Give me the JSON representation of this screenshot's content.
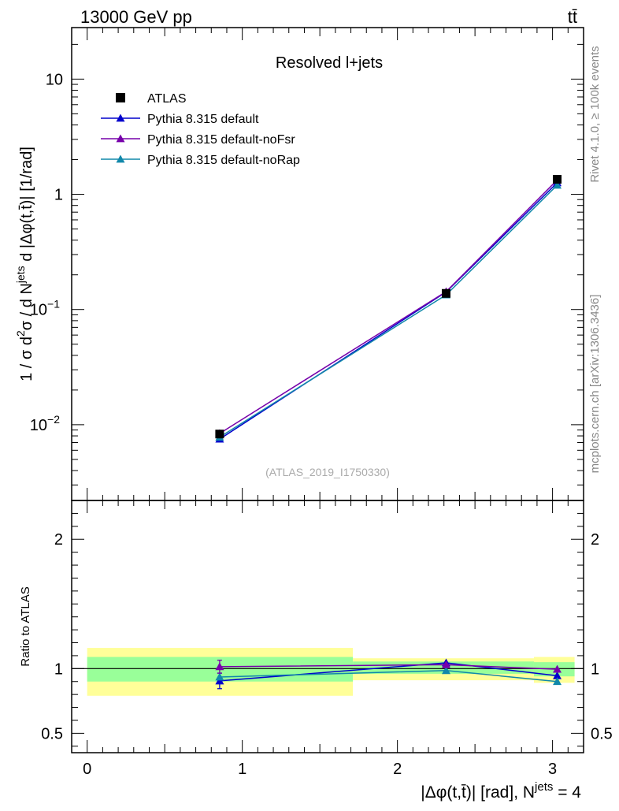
{
  "header": {
    "energy": "13000 GeV pp",
    "process": "tt̄"
  },
  "side_labels": {
    "rivet": "Rivet 4.1.0, ≥ 100k events",
    "mcplots": "mcplots.cern.ch [arXiv:1306.3436]"
  },
  "colors": {
    "atlas": "#000000",
    "default": "#0000cc",
    "noFsr": "#7700aa",
    "noRap": "#1188aa",
    "band_inner": "#99ff99",
    "band_outer": "#ffff99"
  },
  "chart_data": [
    {
      "type": "line",
      "panel": "main",
      "title": "Resolved l+jets",
      "watermark": "(ATLAS_2019_I1750330)",
      "ylabel": "1 / σ d²σ / d N^{jets} d |Δφ(t,t̄)| [1/rad]",
      "yscale": "log",
      "ylim": [
        0.0022,
        28
      ],
      "xlim": [
        -0.1,
        3.2
      ],
      "y_ticks": [
        {
          "value": 0.01,
          "base": "10",
          "exp": "−2"
        },
        {
          "value": 0.1,
          "base": "10",
          "exp": "−1"
        },
        {
          "value": 1,
          "base": "1",
          "exp": ""
        },
        {
          "value": 10,
          "base": "10",
          "exp": ""
        }
      ],
      "legend_position": "top-left",
      "series": [
        {
          "name": "ATLAS",
          "key": "atlas",
          "marker": "square",
          "x": [
            0.854,
            2.314,
            3.03
          ],
          "y": [
            0.0083,
            0.138,
            1.35
          ]
        },
        {
          "name": "Pythia 8.315 default",
          "key": "default",
          "marker": "triangle",
          "x": [
            0.854,
            2.314,
            3.03
          ],
          "y": [
            0.0075,
            0.142,
            1.26
          ]
        },
        {
          "name": "Pythia 8.315 default-noFsr",
          "key": "noFsr",
          "marker": "triangle",
          "x": [
            0.854,
            2.314,
            3.03
          ],
          "y": [
            0.0084,
            0.143,
            1.33
          ]
        },
        {
          "name": "Pythia 8.315 default-noRap",
          "key": "noRap",
          "marker": "triangle",
          "x": [
            0.854,
            2.314,
            3.03
          ],
          "y": [
            0.0078,
            0.134,
            1.2
          ]
        }
      ]
    },
    {
      "type": "line",
      "panel": "ratio",
      "ylabel": "Ratio to ATLAS",
      "xlabel": "|Δφ(t,t̄)| [rad], N^{jets} = 4",
      "ylim": [
        0.35,
        2.3
      ],
      "xlim": [
        -0.1,
        3.2
      ],
      "x_ticks": [
        0,
        1,
        2,
        3
      ],
      "y_ticks": [
        0.5,
        1,
        2
      ],
      "bands": [
        {
          "x0": 0,
          "x1": 1.713,
          "inner": [
            0.9,
            1.09
          ],
          "outer": [
            0.79,
            1.16
          ]
        },
        {
          "x0": 1.713,
          "x1": 2.88,
          "inner": [
            0.96,
            1.055
          ],
          "outer": [
            0.91,
            1.08
          ]
        },
        {
          "x0": 2.88,
          "x1": 3.142,
          "inner": [
            0.94,
            1.05
          ],
          "outer": [
            0.89,
            1.09
          ]
        }
      ],
      "series": [
        {
          "name": "Pythia 8.315 default",
          "key": "default",
          "x": [
            0.854,
            2.314,
            3.03
          ],
          "y": [
            0.905,
            1.045,
            0.945
          ],
          "err": [
            0.06,
            0.0,
            0.0
          ]
        },
        {
          "name": "Pythia 8.315 default-noFsr",
          "key": "noFsr",
          "x": [
            0.854,
            2.314,
            3.03
          ],
          "y": [
            1.015,
            1.03,
            0.995
          ],
          "err": [
            0.05,
            0.0,
            0.0
          ]
        },
        {
          "name": "Pythia 8.315 default-noRap",
          "key": "noRap",
          "x": [
            0.854,
            2.314,
            3.03
          ],
          "y": [
            0.935,
            0.985,
            0.9
          ],
          "err": [
            0.0,
            0.0,
            0.0
          ]
        }
      ]
    }
  ]
}
